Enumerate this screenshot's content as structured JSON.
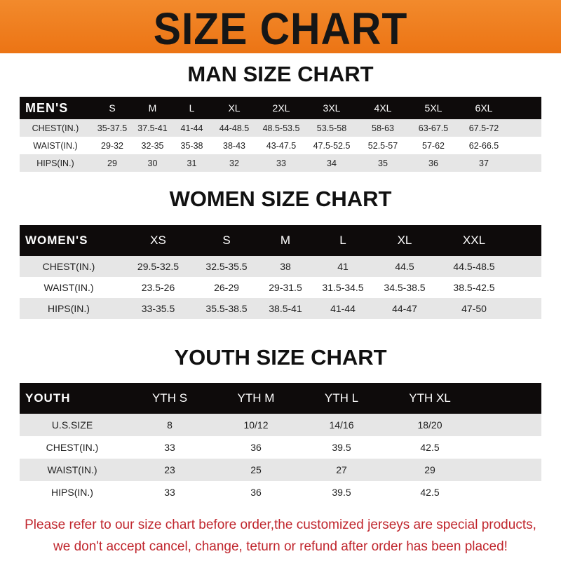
{
  "banner_title": "SIZE CHART",
  "colors": {
    "banner": "#ee7a1c",
    "header_row": "#0e0b0b",
    "notice": "#c0262d"
  },
  "men": {
    "title": "MAN SIZE CHART",
    "header": [
      "MEN'S",
      "S",
      "M",
      "L",
      "XL",
      "2XL",
      "3XL",
      "4XL",
      "5XL",
      "6XL"
    ],
    "rows": [
      [
        "CHEST(IN.)",
        "35-37.5",
        "37.5-41",
        "41-44",
        "44-48.5",
        "48.5-53.5",
        "53.5-58",
        "58-63",
        "63-67.5",
        "67.5-72"
      ],
      [
        "WAIST(IN.)",
        "29-32",
        "32-35",
        "35-38",
        "38-43",
        "43-47.5",
        "47.5-52.5",
        "52.5-57",
        "57-62",
        "62-66.5"
      ],
      [
        "HIPS(IN.)",
        "29",
        "30",
        "31",
        "32",
        "33",
        "34",
        "35",
        "36",
        "37"
      ]
    ]
  },
  "women": {
    "title": "WOMEN SIZE CHART",
    "header": [
      "WOMEN'S",
      "XS",
      "S",
      "M",
      "L",
      "XL",
      "XXL"
    ],
    "rows": [
      [
        "CHEST(IN.)",
        "29.5-32.5",
        "32.5-35.5",
        "38",
        "41",
        "44.5",
        "44.5-48.5"
      ],
      [
        "WAIST(IN.)",
        "23.5-26",
        "26-29",
        "29-31.5",
        "31.5-34.5",
        "34.5-38.5",
        "38.5-42.5"
      ],
      [
        "HIPS(IN.)",
        "33-35.5",
        "35.5-38.5",
        "38.5-41",
        "41-44",
        "44-47",
        "47-50"
      ]
    ]
  },
  "youth": {
    "title": "YOUTH SIZE CHART",
    "header": [
      "YOUTH",
      "YTH S",
      "YTH M",
      "YTH L",
      "YTH XL"
    ],
    "rows": [
      [
        "U.S.SIZE",
        "8",
        "10/12",
        "14/16",
        "18/20"
      ],
      [
        "CHEST(IN.)",
        "33",
        "36",
        "39.5",
        "42.5"
      ],
      [
        "WAIST(IN.)",
        "23",
        "25",
        "27",
        "29"
      ],
      [
        "HIPS(IN.)",
        "33",
        "36",
        "39.5",
        "42.5"
      ]
    ]
  },
  "notice": {
    "line1": "Please refer to our size chart before order,the customized jerseys are special products,",
    "line2": "we don't accept cancel, change, teturn or refund after order has been placed!"
  }
}
